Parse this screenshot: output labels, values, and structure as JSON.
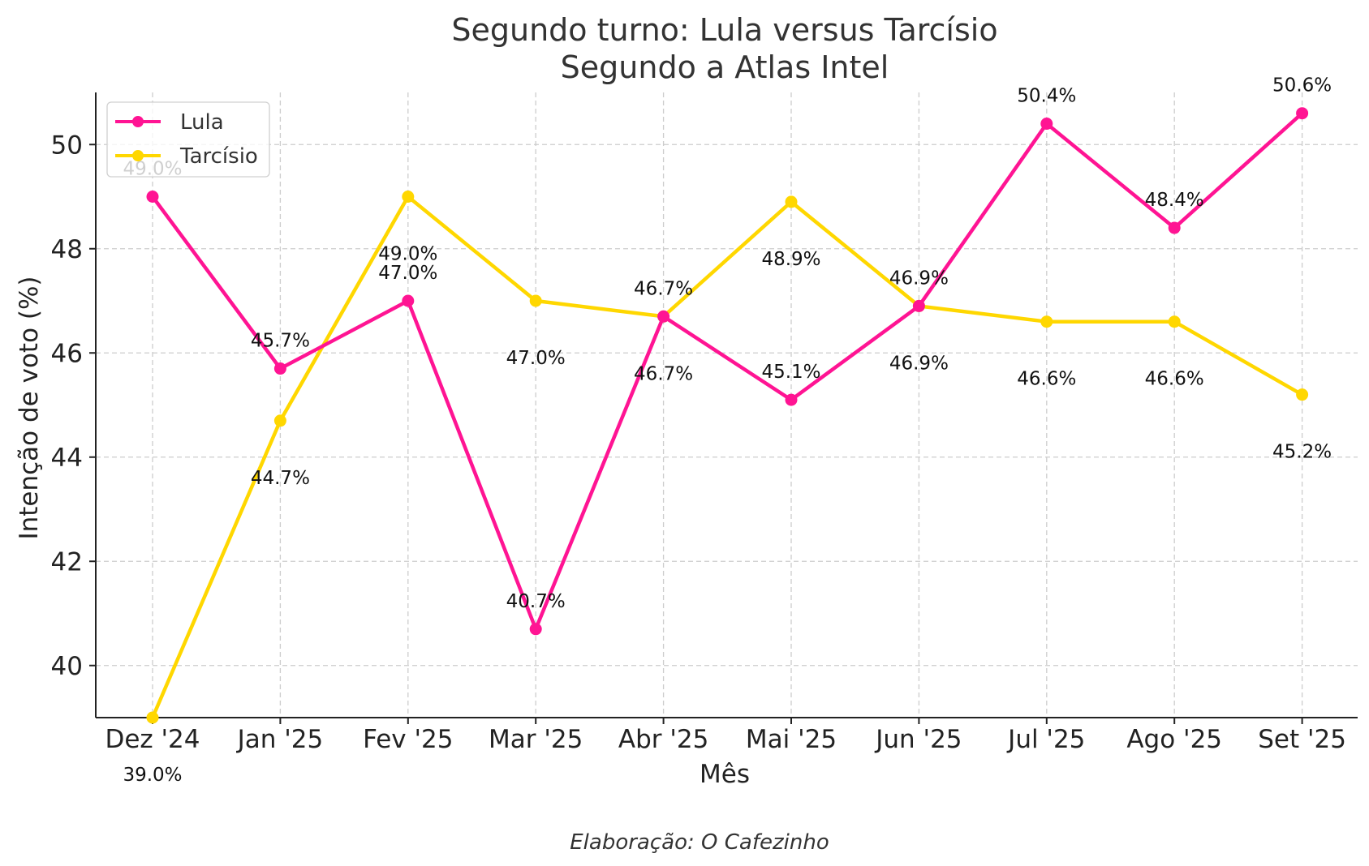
{
  "chart_data": {
    "type": "line",
    "title": [
      "Segundo turno: Lula versus Tarcísio",
      "Segundo a Atlas Intel"
    ],
    "xlabel": "Mês",
    "ylabel": "Intenção de voto (%)",
    "categories": [
      "Dez '24",
      "Jan '25",
      "Fev '25",
      "Mar '25",
      "Abr '25",
      "Mai '25",
      "Jun '25",
      "Jul '25",
      "Ago '25",
      "Set '25"
    ],
    "ylim": [
      39,
      51
    ],
    "yticks": [
      40,
      42,
      44,
      46,
      48,
      50
    ],
    "grid": true,
    "legend_position": "top-left",
    "series": [
      {
        "name": "Lula",
        "color": "#ff1493",
        "values": [
          49.0,
          45.7,
          47.0,
          40.7,
          46.7,
          45.1,
          46.9,
          50.4,
          48.4,
          50.6
        ],
        "labels": [
          "49.0%",
          "45.7%",
          "47.0%",
          "40.7%",
          "46.7%",
          "45.1%",
          "46.9%",
          "50.4%",
          "48.4%",
          "50.6%"
        ]
      },
      {
        "name": "Tarcísio",
        "color": "#ffd700",
        "values": [
          39.0,
          44.7,
          49.0,
          47.0,
          46.7,
          48.9,
          46.9,
          46.6,
          46.6,
          45.2
        ],
        "labels": [
          "39.0%",
          "44.7%",
          "49.0%",
          "47.0%",
          "46.7%",
          "48.9%",
          "46.9%",
          "46.6%",
          "46.6%",
          "45.2%"
        ]
      }
    ],
    "footer": "Elaboração: O Cafezinho"
  }
}
